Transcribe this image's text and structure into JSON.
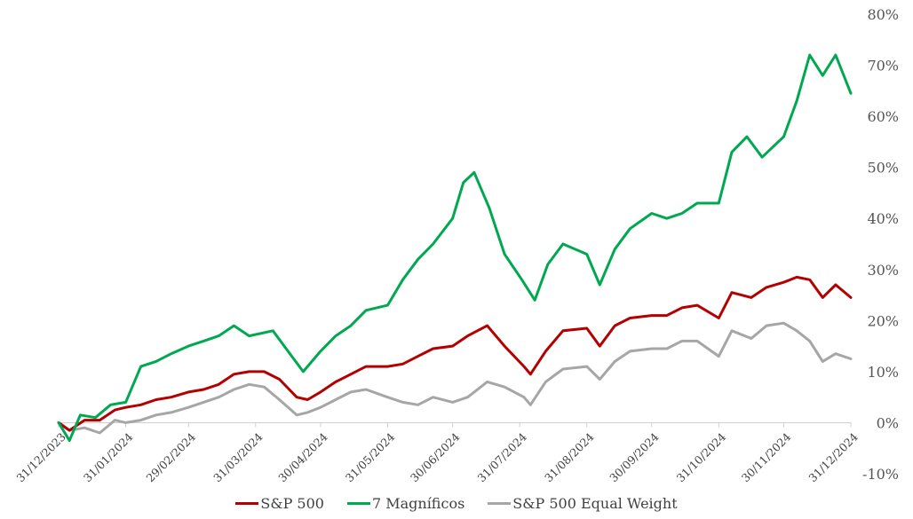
{
  "chart_data": {
    "type": "line",
    "y_axis": {
      "position": "right",
      "ylim": [
        -10,
        80
      ],
      "ticks": [
        -10,
        0,
        10,
        20,
        30,
        40,
        50,
        60,
        70,
        80
      ],
      "tick_labels": [
        "-10%",
        "0%",
        "10%",
        "20%",
        "30%",
        "40%",
        "50%",
        "60%",
        "70%",
        "80%"
      ]
    },
    "x_axis": {
      "xlim": [
        "2023-12-31",
        "2024-12-31"
      ],
      "ticks": [
        "2023-12-31",
        "2024-01-31",
        "2024-02-29",
        "2024-03-31",
        "2024-04-30",
        "2024-05-31",
        "2024-06-30",
        "2024-07-31",
        "2024-08-31",
        "2024-09-30",
        "2024-10-31",
        "2024-11-30",
        "2024-12-31"
      ],
      "tick_labels": [
        "31/12/2023",
        "31/01/2024",
        "29/02/2024",
        "31/03/2024",
        "30/04/2024",
        "31/05/2024",
        "30/06/2024",
        "31/07/2024",
        "31/08/2024",
        "30/09/2024",
        "31/10/2024",
        "30/11/2024",
        "31/12/2024"
      ]
    },
    "grid": false,
    "legend_position": "bottom",
    "series": [
      {
        "name": "S&P 500",
        "color": "#b40000",
        "points": [
          [
            "2023-12-31",
            0
          ],
          [
            "2024-01-05",
            -1.5
          ],
          [
            "2024-01-12",
            0.5
          ],
          [
            "2024-01-19",
            0.5
          ],
          [
            "2024-01-26",
            2.5
          ],
          [
            "2024-01-31",
            3
          ],
          [
            "2024-02-07",
            3.5
          ],
          [
            "2024-02-14",
            4.5
          ],
          [
            "2024-02-21",
            5
          ],
          [
            "2024-02-29",
            6
          ],
          [
            "2024-03-07",
            6.5
          ],
          [
            "2024-03-14",
            7.5
          ],
          [
            "2024-03-21",
            9.5
          ],
          [
            "2024-03-28",
            10
          ],
          [
            "2024-04-04",
            10
          ],
          [
            "2024-04-11",
            8.5
          ],
          [
            "2024-04-19",
            5
          ],
          [
            "2024-04-24",
            4.5
          ],
          [
            "2024-04-30",
            6
          ],
          [
            "2024-05-07",
            8
          ],
          [
            "2024-05-14",
            9.5
          ],
          [
            "2024-05-21",
            11
          ],
          [
            "2024-05-31",
            11
          ],
          [
            "2024-06-07",
            11.5
          ],
          [
            "2024-06-14",
            13
          ],
          [
            "2024-06-21",
            14.5
          ],
          [
            "2024-06-30",
            15
          ],
          [
            "2024-07-07",
            17
          ],
          [
            "2024-07-16",
            19
          ],
          [
            "2024-07-24",
            15
          ],
          [
            "2024-08-02",
            11
          ],
          [
            "2024-08-05",
            9.5
          ],
          [
            "2024-08-12",
            14
          ],
          [
            "2024-08-20",
            18
          ],
          [
            "2024-08-31",
            18.5
          ],
          [
            "2024-09-06",
            15
          ],
          [
            "2024-09-13",
            19
          ],
          [
            "2024-09-20",
            20.5
          ],
          [
            "2024-09-30",
            21
          ],
          [
            "2024-10-07",
            21
          ],
          [
            "2024-10-14",
            22.5
          ],
          [
            "2024-10-21",
            23
          ],
          [
            "2024-10-31",
            20.5
          ],
          [
            "2024-11-06",
            25.5
          ],
          [
            "2024-11-15",
            24.5
          ],
          [
            "2024-11-22",
            26.5
          ],
          [
            "2024-11-30",
            27.5
          ],
          [
            "2024-12-06",
            28.5
          ],
          [
            "2024-12-12",
            28
          ],
          [
            "2024-12-18",
            24.5
          ],
          [
            "2024-12-24",
            27
          ],
          [
            "2024-12-31",
            24.5
          ]
        ]
      },
      {
        "name": "7 Magníficos",
        "color": "#00a850",
        "points": [
          [
            "2023-12-31",
            0
          ],
          [
            "2024-01-05",
            -3.5
          ],
          [
            "2024-01-10",
            1.5
          ],
          [
            "2024-01-17",
            1
          ],
          [
            "2024-01-24",
            3.5
          ],
          [
            "2024-01-31",
            4
          ],
          [
            "2024-02-07",
            11
          ],
          [
            "2024-02-14",
            12
          ],
          [
            "2024-02-21",
            13.5
          ],
          [
            "2024-02-29",
            15
          ],
          [
            "2024-03-07",
            16
          ],
          [
            "2024-03-14",
            17
          ],
          [
            "2024-03-21",
            19
          ],
          [
            "2024-03-28",
            17
          ],
          [
            "2024-04-08",
            18
          ],
          [
            "2024-04-15",
            14
          ],
          [
            "2024-04-22",
            10
          ],
          [
            "2024-04-30",
            14
          ],
          [
            "2024-05-07",
            17
          ],
          [
            "2024-05-14",
            19
          ],
          [
            "2024-05-21",
            22
          ],
          [
            "2024-05-31",
            23
          ],
          [
            "2024-06-07",
            28
          ],
          [
            "2024-06-14",
            32
          ],
          [
            "2024-06-21",
            35
          ],
          [
            "2024-06-30",
            40
          ],
          [
            "2024-07-05",
            47
          ],
          [
            "2024-07-10",
            49
          ],
          [
            "2024-07-17",
            42
          ],
          [
            "2024-07-24",
            33
          ],
          [
            "2024-08-01",
            28
          ],
          [
            "2024-08-07",
            24
          ],
          [
            "2024-08-13",
            31
          ],
          [
            "2024-08-20",
            35
          ],
          [
            "2024-08-31",
            33
          ],
          [
            "2024-09-06",
            27
          ],
          [
            "2024-09-13",
            34
          ],
          [
            "2024-09-20",
            38
          ],
          [
            "2024-09-30",
            41
          ],
          [
            "2024-10-07",
            40
          ],
          [
            "2024-10-14",
            41
          ],
          [
            "2024-10-21",
            43
          ],
          [
            "2024-10-31",
            43
          ],
          [
            "2024-11-06",
            53
          ],
          [
            "2024-11-13",
            56
          ],
          [
            "2024-11-20",
            52
          ],
          [
            "2024-11-30",
            56
          ],
          [
            "2024-12-06",
            63
          ],
          [
            "2024-12-12",
            72
          ],
          [
            "2024-12-18",
            68
          ],
          [
            "2024-12-24",
            72
          ],
          [
            "2024-12-31",
            64.5
          ]
        ]
      },
      {
        "name": "S&P 500 Equal Weight",
        "color": "#a6a6a6",
        "points": [
          [
            "2023-12-31",
            0
          ],
          [
            "2024-01-05",
            -1.5
          ],
          [
            "2024-01-12",
            -1
          ],
          [
            "2024-01-19",
            -2
          ],
          [
            "2024-01-26",
            0.5
          ],
          [
            "2024-01-31",
            0
          ],
          [
            "2024-02-07",
            0.5
          ],
          [
            "2024-02-14",
            1.5
          ],
          [
            "2024-02-21",
            2
          ],
          [
            "2024-02-29",
            3
          ],
          [
            "2024-03-07",
            4
          ],
          [
            "2024-03-14",
            5
          ],
          [
            "2024-03-21",
            6.5
          ],
          [
            "2024-03-28",
            7.5
          ],
          [
            "2024-04-04",
            7
          ],
          [
            "2024-04-11",
            4.5
          ],
          [
            "2024-04-19",
            1.5
          ],
          [
            "2024-04-24",
            2
          ],
          [
            "2024-04-30",
            3
          ],
          [
            "2024-05-07",
            4.5
          ],
          [
            "2024-05-14",
            6
          ],
          [
            "2024-05-21",
            6.5
          ],
          [
            "2024-05-31",
            5
          ],
          [
            "2024-06-07",
            4
          ],
          [
            "2024-06-14",
            3.5
          ],
          [
            "2024-06-21",
            5
          ],
          [
            "2024-06-30",
            4
          ],
          [
            "2024-07-07",
            5
          ],
          [
            "2024-07-16",
            8
          ],
          [
            "2024-07-24",
            7
          ],
          [
            "2024-08-02",
            5
          ],
          [
            "2024-08-05",
            3.5
          ],
          [
            "2024-08-12",
            8
          ],
          [
            "2024-08-20",
            10.5
          ],
          [
            "2024-08-31",
            11
          ],
          [
            "2024-09-06",
            8.5
          ],
          [
            "2024-09-13",
            12
          ],
          [
            "2024-09-20",
            14
          ],
          [
            "2024-09-30",
            14.5
          ],
          [
            "2024-10-07",
            14.5
          ],
          [
            "2024-10-14",
            16
          ],
          [
            "2024-10-21",
            16
          ],
          [
            "2024-10-31",
            13
          ],
          [
            "2024-11-06",
            18
          ],
          [
            "2024-11-15",
            16.5
          ],
          [
            "2024-11-22",
            19
          ],
          [
            "2024-11-30",
            19.5
          ],
          [
            "2024-12-06",
            18
          ],
          [
            "2024-12-12",
            16
          ],
          [
            "2024-12-18",
            12
          ],
          [
            "2024-12-24",
            13.5
          ],
          [
            "2024-12-31",
            12.5
          ]
        ]
      }
    ]
  }
}
